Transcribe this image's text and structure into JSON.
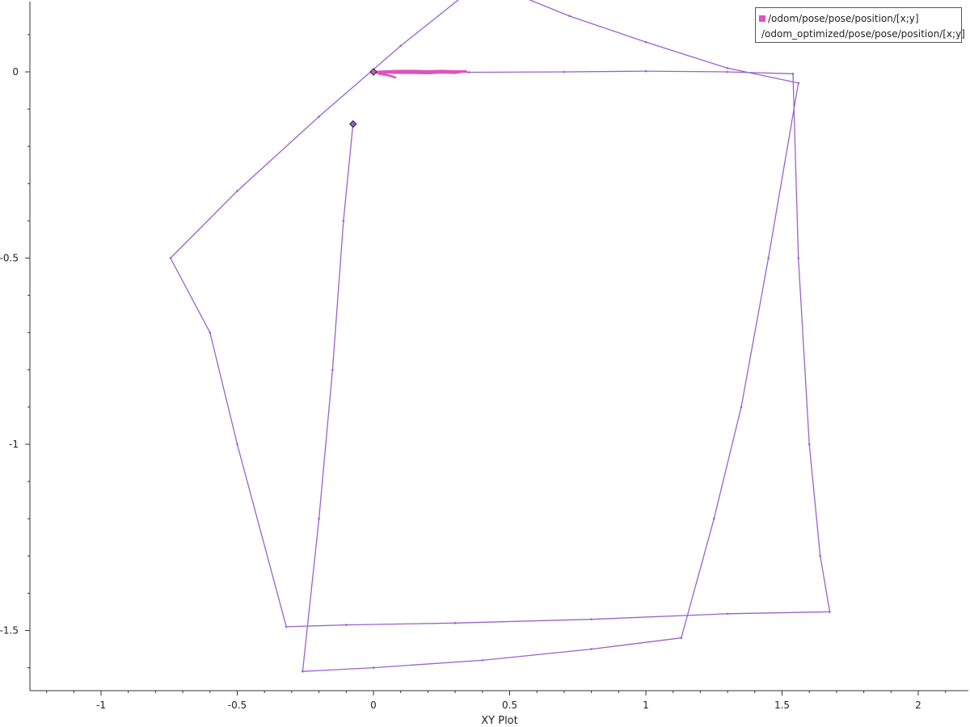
{
  "chart_data": {
    "type": "line",
    "title": "",
    "xlabel": "XY Plot",
    "ylabel": "",
    "xlim": [
      -1.25,
      2.2
    ],
    "ylim": [
      -1.66,
      0.19
    ],
    "x_ticks": [
      -1,
      -0.5,
      0,
      0.5,
      1,
      1.5,
      2
    ],
    "x_tick_labels": [
      "-1",
      "-0.5",
      "0",
      "0.5",
      "1",
      "1.5",
      "2"
    ],
    "y_ticks": [
      0,
      -0.5,
      -1,
      -1.5
    ],
    "y_tick_labels": [
      "0",
      "-0.5",
      "-1",
      "-1.5"
    ],
    "x_minor_step": 0.1,
    "y_minor_step": 0.1,
    "grid": false,
    "legend_position": "top-right",
    "series": [
      {
        "name": "/odom/pose/pose/position/[x;y]",
        "color": "#e052c0",
        "x": [
          0.0,
          0.05,
          0.1,
          0.15,
          0.2,
          0.25,
          0.3,
          0.34,
          0.3,
          0.25,
          0.2,
          0.15,
          0.1,
          0.05,
          0.02,
          0.06,
          0.08,
          0.05,
          0.02,
          0.0
        ],
        "y": [
          0.0,
          0.002,
          0.003,
          0.003,
          0.002,
          0.003,
          0.002,
          0.002,
          -0.003,
          -0.002,
          -0.004,
          -0.003,
          -0.003,
          -0.002,
          -0.005,
          -0.01,
          -0.015,
          -0.008,
          -0.004,
          0.0
        ],
        "end_marker": [
          0.0,
          0.0
        ]
      },
      {
        "name": "/odom_optimized/pose/pose/position/[x;y]",
        "color": "#9a62c8",
        "x": [
          0.0,
          0.35,
          0.7,
          1.0,
          1.3,
          1.54,
          1.56,
          1.6,
          1.64,
          1.675,
          1.3,
          0.8,
          0.3,
          -0.1,
          -0.32,
          -0.5,
          -0.6,
          -0.745,
          -0.5,
          -0.2,
          0.1,
          0.4,
          0.72,
          1.0,
          1.3,
          1.56,
          1.45,
          1.35,
          1.25,
          1.13,
          0.8,
          0.4,
          0.0,
          -0.26,
          -0.2,
          -0.15,
          -0.11,
          -0.075
        ],
        "y": [
          0.0,
          -0.001,
          0.0,
          0.002,
          0.0,
          -0.005,
          -0.5,
          -1.0,
          -1.3,
          -1.45,
          -1.455,
          -1.47,
          -1.48,
          -1.485,
          -1.49,
          -1.0,
          -0.7,
          -0.5,
          -0.32,
          -0.12,
          0.07,
          0.245,
          0.15,
          0.08,
          0.01,
          -0.03,
          -0.5,
          -0.9,
          -1.2,
          -1.52,
          -1.55,
          -1.58,
          -1.6,
          -1.61,
          -1.2,
          -0.8,
          -0.4,
          -0.14
        ],
        "end_marker": [
          -0.075,
          -0.14
        ]
      }
    ]
  }
}
